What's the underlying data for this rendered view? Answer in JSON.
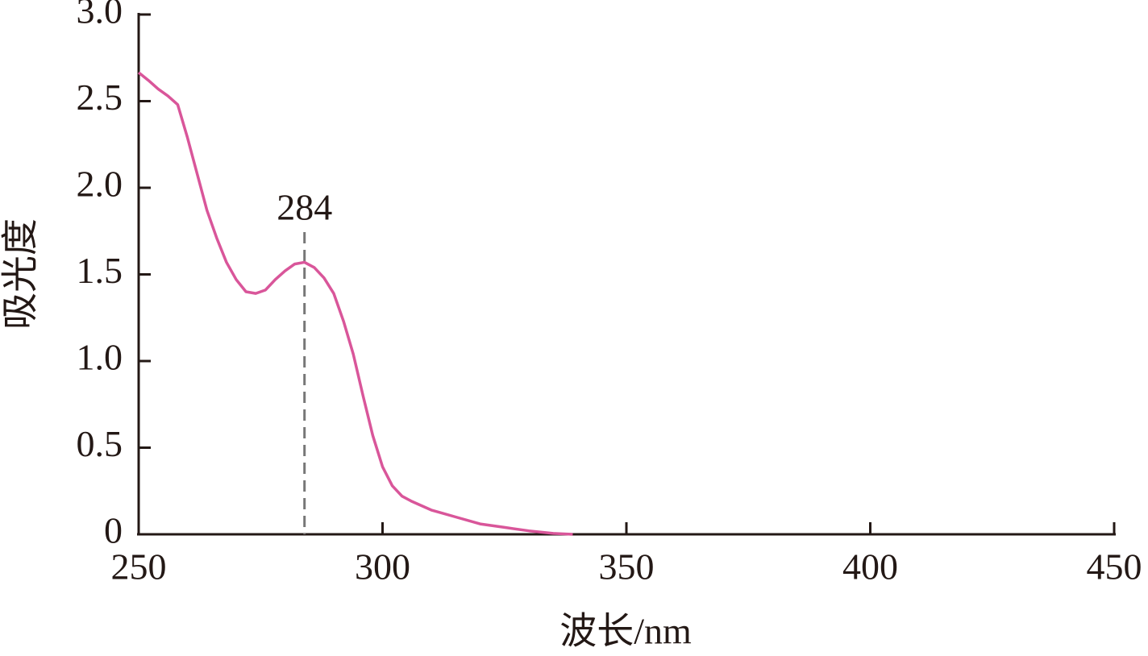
{
  "chart_data": {
    "type": "line",
    "xlabel": "波长/nm",
    "ylabel": "吸光度",
    "x": [
      250,
      252,
      254,
      256,
      258,
      260,
      262,
      264,
      266,
      268,
      270,
      272,
      274,
      276,
      278,
      280,
      282,
      284,
      286,
      288,
      290,
      292,
      294,
      296,
      298,
      300,
      302,
      304,
      306,
      310,
      315,
      320,
      325,
      330,
      335,
      339
    ],
    "values": [
      2.665,
      2.62,
      2.57,
      2.53,
      2.48,
      2.29,
      2.08,
      1.87,
      1.71,
      1.57,
      1.47,
      1.4,
      1.39,
      1.41,
      1.47,
      1.52,
      1.56,
      1.57,
      1.54,
      1.48,
      1.39,
      1.23,
      1.04,
      0.8,
      0.57,
      0.39,
      0.28,
      0.22,
      0.19,
      0.14,
      0.1,
      0.06,
      0.04,
      0.02,
      0.005,
      0
    ],
    "color": "#d9569a",
    "xlim": [
      250,
      450
    ],
    "xticks": [
      250,
      300,
      350,
      400,
      450
    ],
    "ylim": [
      0,
      3
    ],
    "yticks": [
      0,
      0.5,
      {
        "value": 1,
        "label": "1.0"
      },
      1.5,
      {
        "value": 2,
        "label": "2.0"
      },
      2.5,
      {
        "value": 3,
        "label": "3.0"
      }
    ],
    "annotations": [
      {
        "x": 284
      }
    ]
  }
}
